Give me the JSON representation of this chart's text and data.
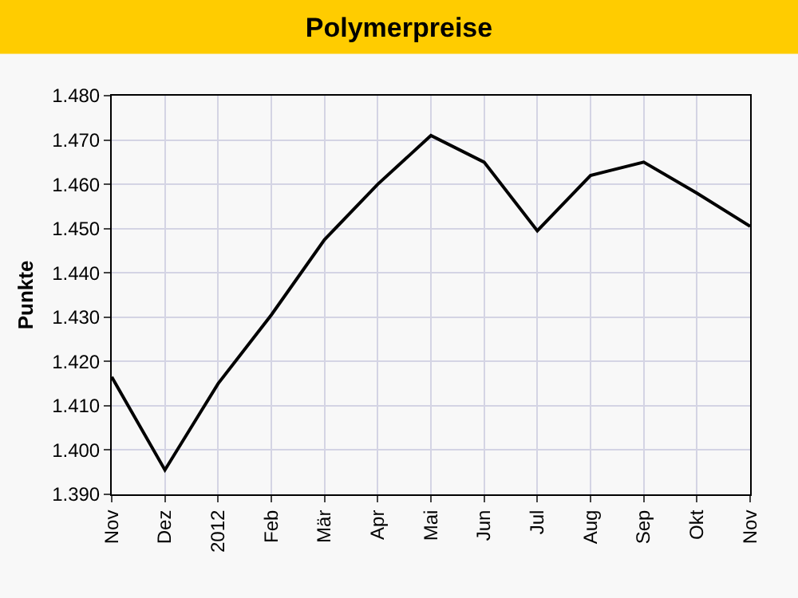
{
  "chart_data": {
    "type": "line",
    "title": "Polymerpreise",
    "ylabel": "Punkte",
    "categories": [
      "Nov",
      "Dez",
      "2012",
      "Feb",
      "Mär",
      "Apr",
      "Mai",
      "Jun",
      "Jul",
      "Aug",
      "Sep",
      "Okt",
      "Nov"
    ],
    "series": [
      {
        "color": "#000000",
        "values": [
          1416.5,
          1395.5,
          1415,
          1430.5,
          1447.5,
          1460,
          1471,
          1465,
          1449.5,
          1462,
          1465,
          1458,
          1450.5
        ]
      }
    ],
    "ylim": [
      1390,
      1480
    ],
    "yticks": [
      {
        "value": 1390,
        "label": "1.390"
      },
      {
        "value": 1400,
        "label": "1.400"
      },
      {
        "value": 1410,
        "label": "1.410"
      },
      {
        "value": 1420,
        "label": "1.420"
      },
      {
        "value": 1430,
        "label": "1.430"
      },
      {
        "value": 1440,
        "label": "1.440"
      },
      {
        "value": 1450,
        "label": "1.450"
      },
      {
        "value": 1460,
        "label": "1.460"
      },
      {
        "value": 1470,
        "label": "1.470"
      },
      {
        "value": 1480,
        "label": "1.480"
      }
    ],
    "grid": true,
    "marker": "none",
    "line_style": "solid"
  }
}
